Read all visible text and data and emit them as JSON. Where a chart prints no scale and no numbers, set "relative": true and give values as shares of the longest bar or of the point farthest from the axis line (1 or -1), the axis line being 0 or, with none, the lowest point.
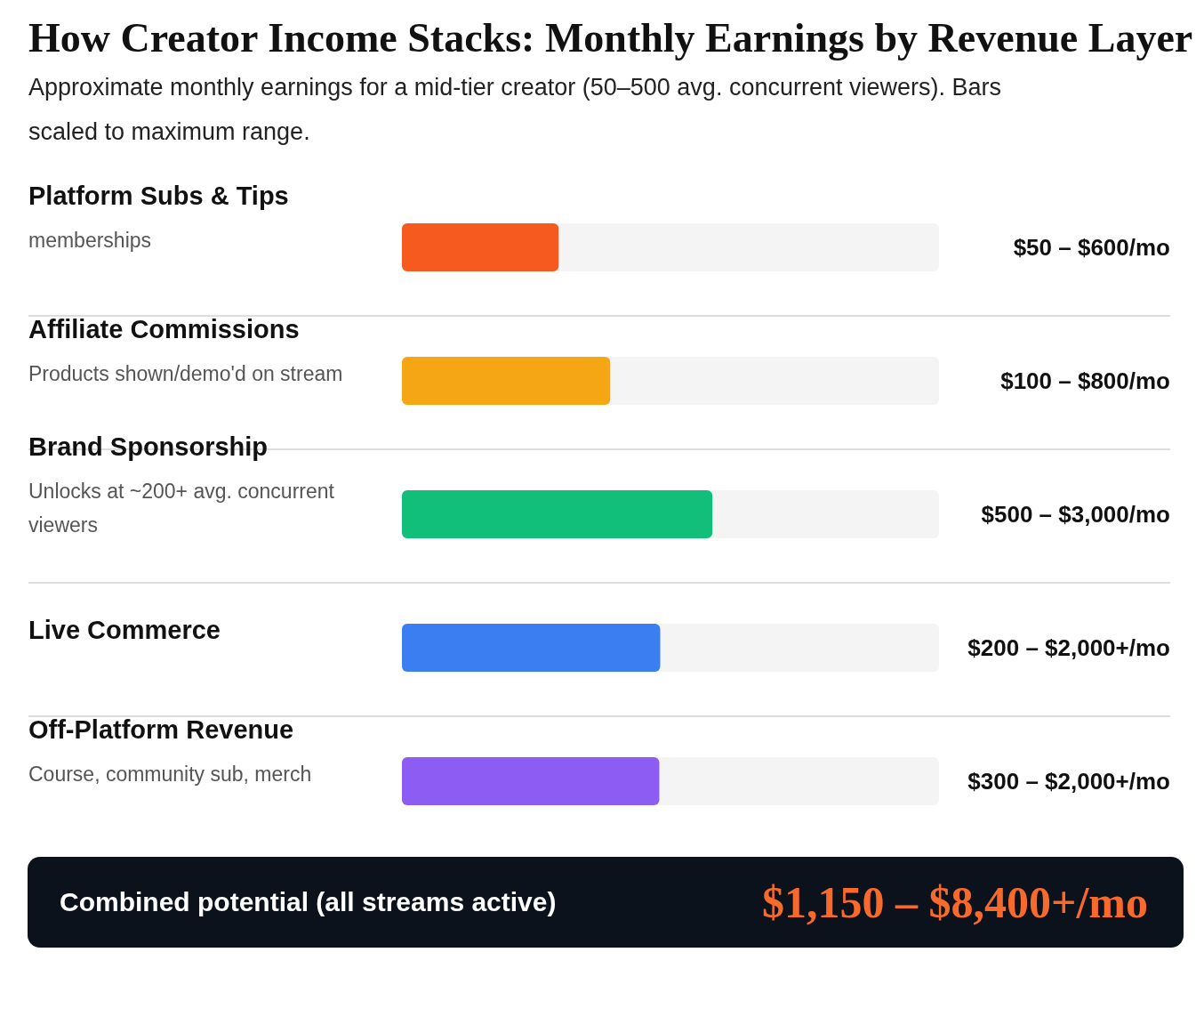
{
  "chart_data": {
    "type": "bar",
    "orientation": "horizontal",
    "relative": true,
    "title": "How Creator Income Stacks: Monthly Earnings by Revenue Layer",
    "subtitle": "Approximate monthly earnings for a mid-tier creator (50–500 avg. concurrent viewers). Bars scaled to maximum range.",
    "categories": [
      "Platform Subs & Tips\nmemberships",
      "Affiliate Commissions\nProducts shown/demo'd on stream",
      "Brand Sponsorship\nUnlocks at ~200+ avg. concurrent viewers",
      "Live Commerce",
      "Off-Platform Revenue\nCourse, community sub, merch"
    ],
    "values": [
      0.505,
      0.671,
      1,
      0.832,
      0.829
    ],
    "colors": [
      "#f75a1f",
      "#f5a614",
      "#12bf7a",
      "#3b7ef2",
      "#8d5cf2"
    ],
    "annotations": [
      "$50 – $600/mo",
      "$100 – $800/mo",
      "$500 – $3,000/mo",
      "$200 – $2,000+/mo",
      "$300 – $2,000+/mo",
      "Combined potential (all streams active)",
      "$1,150 – $8,400+/mo"
    ]
  }
}
